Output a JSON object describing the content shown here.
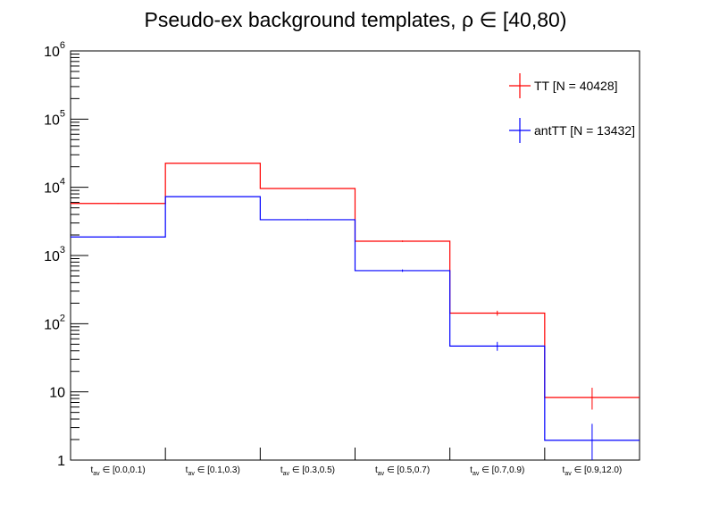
{
  "chart_data": {
    "type": "step-histogram",
    "title": "Pseudo-ex background templates, ρ ∈ [40,80)",
    "y_scale": "log",
    "ylim": [
      1,
      1000000
    ],
    "y_tick_labels": [
      {
        "value": 1,
        "base": "1",
        "exp": ""
      },
      {
        "value": 10,
        "base": "10",
        "exp": ""
      },
      {
        "value": 100,
        "base": "10",
        "exp": "2"
      },
      {
        "value": 1000,
        "base": "10",
        "exp": "3"
      },
      {
        "value": 10000,
        "base": "10",
        "exp": "4"
      },
      {
        "value": 100000,
        "base": "10",
        "exp": "5"
      },
      {
        "value": 1000000,
        "base": "10",
        "exp": "6"
      }
    ],
    "categories": [
      {
        "var": "t",
        "sub": "av",
        "range": "∈ [0.0,0.1)"
      },
      {
        "var": "t",
        "sub": "av",
        "range": "∈ [0.1,0.3)"
      },
      {
        "var": "t",
        "sub": "av",
        "range": "∈ [0.3,0.5)"
      },
      {
        "var": "t",
        "sub": "av",
        "range": "∈ [0.5,0.7)"
      },
      {
        "var": "t",
        "sub": "av",
        "range": "∈ [0.7,0.9)"
      },
      {
        "var": "t",
        "sub": "av",
        "range": "∈ [0.9,12.0)"
      }
    ],
    "series": [
      {
        "name": "TT [N = 40428]",
        "color": "#ff0000",
        "values": [
          5800,
          22500,
          9600,
          1620,
          143,
          8.3
        ],
        "err_low": [
          5725,
          22350,
          9500,
          1580,
          131,
          5.5
        ],
        "err_high": [
          5875,
          22650,
          9700,
          1660,
          155,
          11.5
        ]
      },
      {
        "name": "antTT [N = 13432]",
        "color": "#0000ff",
        "values": [
          1870,
          7300,
          3350,
          600,
          47,
          1.95
        ],
        "err_low": [
          1830,
          7215,
          3290,
          576,
          40,
          1.0
        ],
        "err_high": [
          1910,
          7385,
          3410,
          624,
          54,
          3.4
        ]
      }
    ],
    "legend_position": "top-right"
  }
}
